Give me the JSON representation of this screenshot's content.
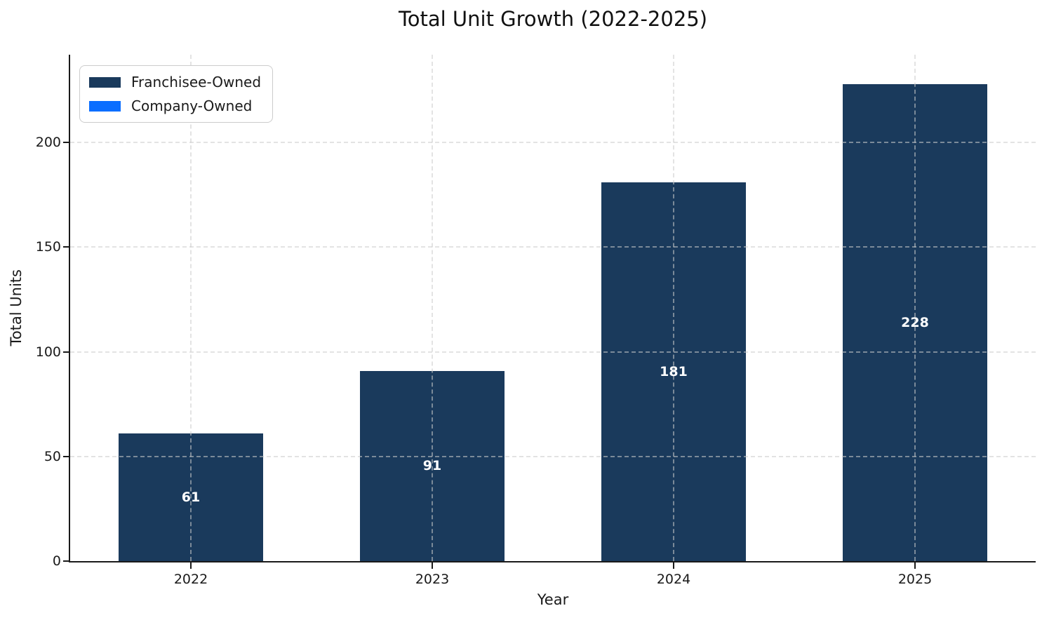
{
  "chart_data": {
    "type": "bar",
    "stacked": true,
    "title": "Total Unit Growth (2022-2025)",
    "xlabel": "Year",
    "ylabel": "Total Units",
    "categories": [
      "2022",
      "2023",
      "2024",
      "2025"
    ],
    "series": [
      {
        "name": "Franchisee-Owned",
        "color": "#1A3A5C",
        "values": [
          61,
          91,
          181,
          228
        ]
      },
      {
        "name": "Company-Owned",
        "color": "#0A6EFF",
        "values": [
          0,
          0,
          0,
          0
        ]
      }
    ],
    "bar_labels": [
      "61",
      "91",
      "181",
      "228"
    ],
    "bar_label_color": "#ffffff",
    "yticks": [
      0,
      50,
      100,
      150,
      200
    ],
    "ylim": [
      0,
      242
    ],
    "grid": "dashed",
    "legend_position": "upper-left"
  },
  "legend": {
    "items": [
      {
        "label": "Franchisee-Owned",
        "color": "#1A3A5C"
      },
      {
        "label": "Company-Owned",
        "color": "#0A6EFF"
      }
    ]
  }
}
